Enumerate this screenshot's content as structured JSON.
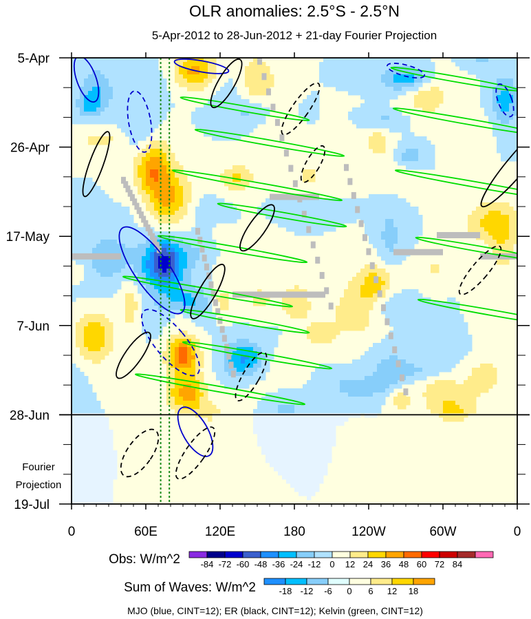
{
  "chart_data": {
    "type": "heatmap",
    "title": "OLR anomalies: 2.5°S - 2.5°N",
    "subtitle": "5-Apr-2012 to 28-Jun-2012 + 21-day Fourier Projection",
    "x_axis": {
      "tick_labels": [
        "0",
        "60E",
        "120E",
        "180",
        "120W",
        "60W",
        "0"
      ],
      "range_deg_east": [
        0,
        360
      ],
      "tick_values_deg_east": [
        0,
        60,
        120,
        180,
        240,
        300,
        360
      ]
    },
    "y_axis": {
      "tick_labels": [
        "5-Apr",
        "26-Apr",
        "17-May",
        "7-Jun",
        "28-Jun",
        "19-Jul"
      ],
      "tick_values_day": [
        0,
        21,
        42,
        63,
        84,
        105
      ],
      "range_day": [
        0,
        105
      ],
      "observed_end_label": "28-Jun",
      "projection_label_line1": "Fourier",
      "projection_label_line2": "Projection"
    },
    "obs_colorbar": {
      "title": "Obs: W/m^2",
      "levels": [
        -84,
        -72,
        -60,
        -48,
        -36,
        -24,
        -12,
        0,
        12,
        24,
        36,
        48,
        60,
        72,
        84
      ],
      "labels": [
        "-84",
        "-72",
        "-60",
        "-48",
        "-36",
        "-24",
        "-12",
        "0",
        "12",
        "24",
        "36",
        "48",
        "60",
        "72",
        "84"
      ],
      "colors": [
        "#8a2be2",
        "#00008b",
        "#0000cd",
        "#3a5fcd",
        "#1e90ff",
        "#00bfff",
        "#87cefa",
        "#b0e2ff",
        "#ffffe0",
        "#ffec8b",
        "#ffd700",
        "#ffa500",
        "#ff6a00",
        "#ff0000",
        "#cd0000",
        "#a52a2a",
        "#ff69b4"
      ]
    },
    "waves_colorbar": {
      "title": "Sum of Waves: W/m^2",
      "levels": [
        -18,
        -12,
        -6,
        0,
        6,
        12,
        18
      ],
      "labels": [
        "-18",
        "-12",
        "-6",
        "0",
        "6",
        "12",
        "18"
      ],
      "colors": [
        "#1e90ff",
        "#00bfff",
        "#87cefa",
        "#e0ffff",
        "#ffffe0",
        "#ffec8b",
        "#ffd700",
        "#ffa500"
      ]
    },
    "contours_caption": "MJO (blue, CINT=12); ER (black, CINT=12); Kelvin (green, CINT=12)",
    "wave_contours": [
      {
        "name": "MJO",
        "color": "#0000cd",
        "cint": 12
      },
      {
        "name": "ER",
        "color": "#000000",
        "cint": 12
      },
      {
        "name": "Kelvin",
        "color": "#00dd00",
        "cint": 12
      }
    ],
    "reference_lines_deg_east": [
      72,
      79
    ],
    "colors": {
      "plot_background": "#ffffe0",
      "missing_data": "#bdbdbd",
      "projection_background": "#e6f4ff"
    }
  }
}
